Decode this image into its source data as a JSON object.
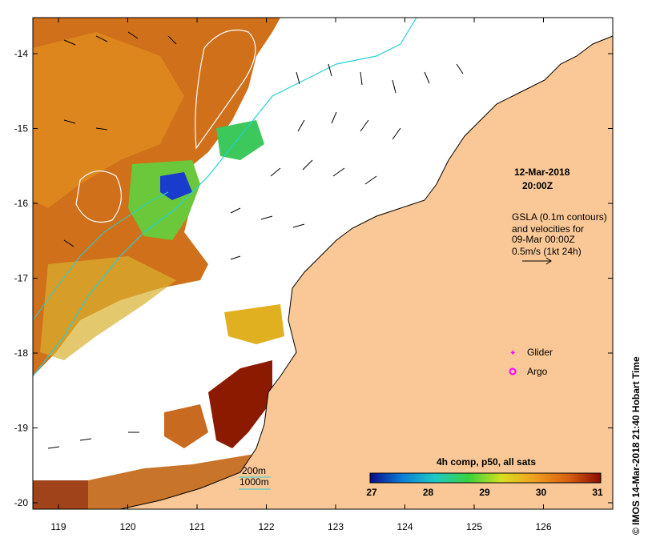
{
  "x_ticks": [
    "119",
    "120",
    "121",
    "122",
    "123",
    "124",
    "125",
    "126"
  ],
  "y_ticks": [
    "-14",
    "-15",
    "-16",
    "-17",
    "-18",
    "-19",
    "-20"
  ],
  "date_line1": "12-Mar-2018",
  "date_line2": "20:00Z",
  "gsla_lines": [
    "GSLA (0.1m contours)",
    "and velocities for",
    "09-Mar 00:00Z",
    "0.5m/s (1kt 24h)"
  ],
  "legend": {
    "glider": "Glider",
    "argo": "Argo"
  },
  "isobaths": {
    "shallow": "200m",
    "deep": "1000m"
  },
  "colorbar": {
    "title": "4h comp, p50, all sats",
    "labels": [
      "27",
      "28",
      "29",
      "30",
      "31"
    ],
    "colors": [
      "#0a0a8c",
      "#0a7fd6",
      "#1ec8c8",
      "#3ad23a",
      "#d8e020",
      "#f0a020",
      "#d86010",
      "#8c0a00"
    ]
  },
  "credit": "IMOS 14-Mar-2018 21:40 Hobart Time",
  "copyright_symbol": "©",
  "colors": {
    "land": "#f9c896",
    "sst_warm": "#d0701a",
    "contour": "#ffffff",
    "isobath": "#26d0d8",
    "glider": "#ff00ff"
  }
}
